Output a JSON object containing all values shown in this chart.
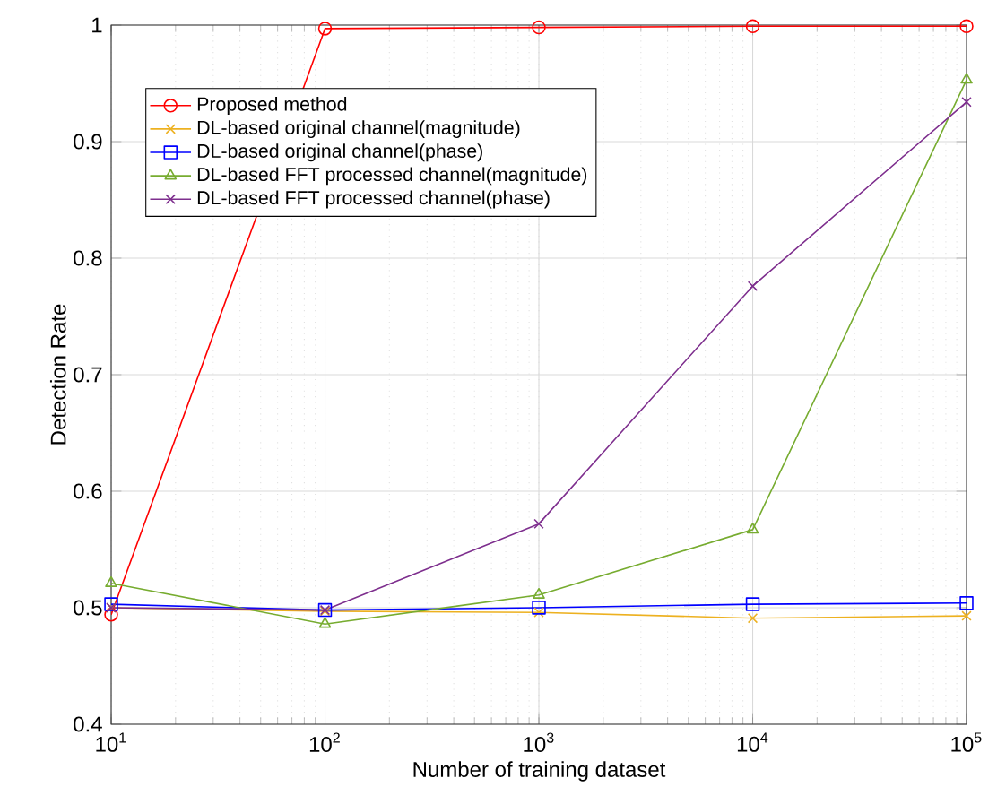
{
  "chart_data": {
    "type": "line",
    "xlabel": "Number of training dataset",
    "ylabel": "Detection Rate",
    "log": "x",
    "grid": true,
    "legend": "top left",
    "x": [
      10,
      100,
      1000,
      10000,
      100000
    ],
    "xlim": [
      10,
      100000
    ],
    "xticks": [
      {
        "value": 10,
        "label": "10$^{1}$"
      },
      {
        "value": 100,
        "label": "10$^{2}$"
      },
      {
        "value": 1000,
        "label": "10$^{3}$"
      },
      {
        "value": 10000,
        "label": "10$^{4}$"
      },
      {
        "value": 100000,
        "label": "10$^{5}$"
      }
    ],
    "ylim": [
      0.4,
      1
    ],
    "yticks": [
      0.4,
      0.5,
      0.6,
      0.7,
      0.8,
      0.9,
      1
    ],
    "series": [
      {
        "name": "Proposed method",
        "color": "#ff0000",
        "marker": "circle",
        "values": [
          0.494,
          0.997,
          0.998,
          0.999,
          0.999
        ]
      },
      {
        "name": "DL-based original channel(magnitude)",
        "color": "#edb120",
        "marker": "cross",
        "values": [
          0.5,
          0.497,
          0.496,
          0.491,
          0.493
        ]
      },
      {
        "name": "DL-based original channel(phase)",
        "color": "#0000ff",
        "marker": "square",
        "values": [
          0.503,
          0.498,
          0.5,
          0.503,
          0.504
        ]
      },
      {
        "name": "DL-based FFT processed channel(magnitude)",
        "color": "#77ac30",
        "marker": "triangle",
        "values": [
          0.521,
          0.486,
          0.511,
          0.567,
          0.953
        ]
      },
      {
        "name": "DL-based FFT processed channel(phase)",
        "color": "#7e2f8e",
        "marker": "cross",
        "values": [
          0.5,
          0.498,
          0.572,
          0.776,
          0.934
        ]
      }
    ]
  }
}
